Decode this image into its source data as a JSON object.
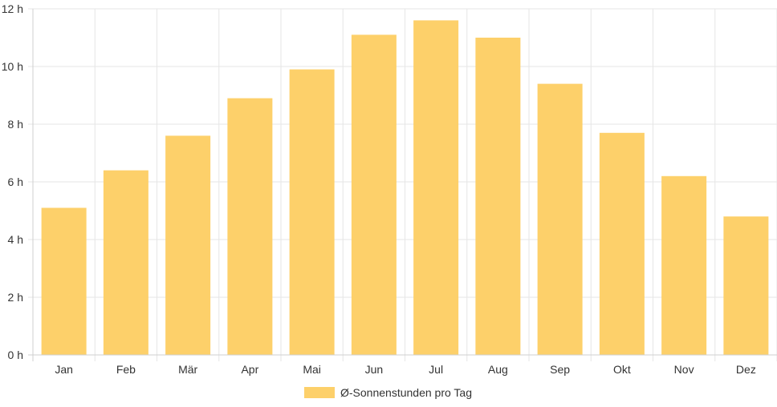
{
  "chart_data": {
    "type": "bar",
    "categories": [
      "Jan",
      "Feb",
      "Mär",
      "Apr",
      "Mai",
      "Jun",
      "Jul",
      "Aug",
      "Sep",
      "Okt",
      "Nov",
      "Dez"
    ],
    "series": [
      {
        "name": "Ø-Sonnenstunden pro Tag",
        "values": [
          5.1,
          6.4,
          7.6,
          8.9,
          9.9,
          11.1,
          11.6,
          11.0,
          9.4,
          7.7,
          6.2,
          4.8
        ],
        "color": "#fdd06a"
      }
    ],
    "y_ticks": [
      "0 h",
      "2 h",
      "4 h",
      "6 h",
      "8 h",
      "10 h",
      "12 h"
    ],
    "ylim": [
      0,
      12
    ],
    "grid": true,
    "legend_position": "bottom"
  }
}
